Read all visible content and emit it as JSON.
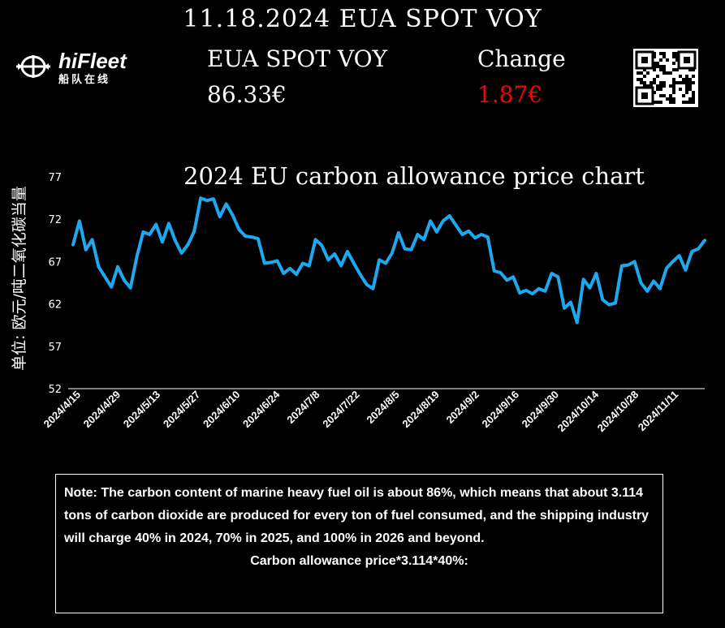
{
  "header": {
    "title": "11.18.2024 EUA SPOT VOY",
    "spot_label": "EUA SPOT VOY",
    "spot_value": "86.33€",
    "change_label": "Change",
    "change_value": "1.87€",
    "change_color": "#ff0000"
  },
  "logo": {
    "name": "hiFleet",
    "subtitle": "船队在线",
    "icon": "ship-wheel-icon"
  },
  "qr": {
    "icon": "qr-code-icon"
  },
  "note": {
    "text": "Note: The carbon content of marine heavy fuel oil is about 86%, which means that about 3.114 tons of carbon dioxide are produced for every ton of fuel consumed, and the shipping industry will charge 40% in 2024, 70% in 2025, and 100% in 2026 and beyond.",
    "formula": "Carbon allowance price*3.114*40%:"
  },
  "chart_data": {
    "type": "line",
    "title": "2024 EU carbon allowance price chart",
    "ylabel": "单位: 欧元/吨二氧化碳当量",
    "xlabel": "",
    "ylim": [
      52,
      77
    ],
    "yticks": [
      52,
      57,
      62,
      67,
      72,
      77
    ],
    "xticks": [
      "2024/4/15",
      "2024/4/29",
      "2024/5/13",
      "2024/5/27",
      "2024/6/10",
      "2024/6/24",
      "2024/7/8",
      "2024/7/22",
      "2024/8/5",
      "2024/8/19",
      "2024/9/2",
      "2024/9/16",
      "2024/9/30",
      "2024/10/14",
      "2024/10/28",
      "2024/11/11"
    ],
    "line_color": "#1ea8ee",
    "grid": false,
    "series": [
      {
        "values": [
          69.0,
          71.8,
          68.4,
          69.6,
          66.4,
          65.2,
          64.0,
          66.4,
          64.8,
          63.9,
          67.6,
          70.5,
          70.2,
          71.4,
          69.3,
          71.5,
          69.5,
          68.0,
          69.0,
          70.6,
          74.5,
          74.2,
          74.4,
          72.3,
          73.8,
          72.5,
          70.8,
          70.0,
          69.9,
          69.7,
          66.8,
          66.9,
          67.1,
          65.6,
          66.2,
          65.5,
          66.8,
          66.5,
          69.6,
          68.9,
          67.2,
          67.9,
          66.5,
          68.2,
          66.8,
          65.5,
          64.3,
          63.8,
          67.2,
          66.8,
          68.0,
          70.4,
          68.5,
          68.4,
          70.2,
          69.6,
          71.8,
          70.5,
          71.8,
          72.4,
          71.3,
          70.2,
          70.6,
          69.8,
          70.2,
          69.9,
          65.9,
          65.7,
          64.8,
          65.2,
          63.3,
          63.6,
          63.2,
          63.8,
          63.5,
          65.6,
          65.2,
          61.5,
          62.2,
          59.8,
          64.9,
          63.9,
          65.6,
          62.5,
          61.9,
          62.1,
          66.5,
          66.6,
          67.0,
          64.5,
          63.5,
          64.7,
          63.8,
          66.2,
          67.0,
          67.7,
          66.0,
          68.2,
          68.5,
          69.5
        ]
      }
    ]
  }
}
